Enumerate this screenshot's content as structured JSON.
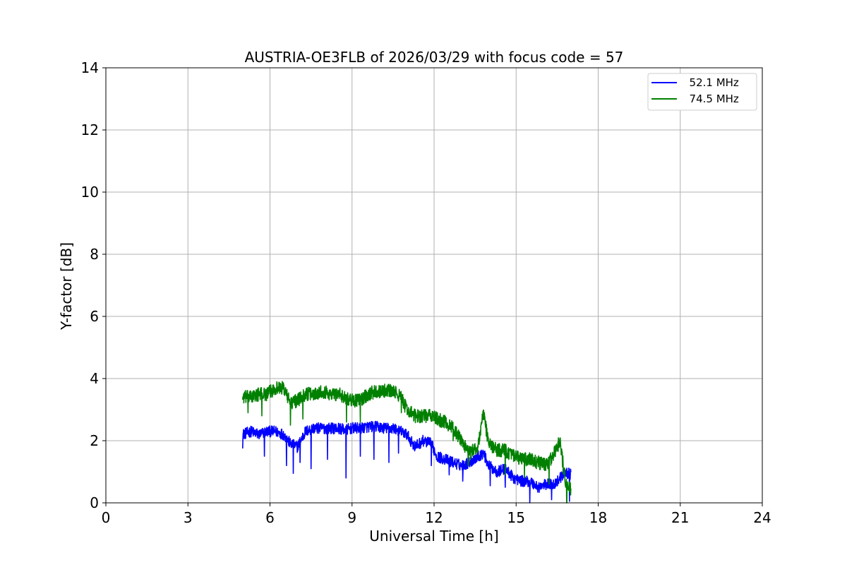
{
  "chart_data": {
    "type": "line",
    "title": "AUSTRIA-OE3FLB of 2026/03/29 with focus code = 57",
    "xlabel": "Universal Time [h]",
    "ylabel": "Y-factor [dB]",
    "xlim": [
      0,
      24
    ],
    "ylim": [
      0,
      14
    ],
    "xticks": [
      0,
      3,
      6,
      9,
      12,
      15,
      18,
      21,
      24
    ],
    "yticks": [
      0,
      2,
      4,
      6,
      8,
      10,
      12,
      14
    ],
    "grid": true,
    "legend_position": "top-right",
    "series": [
      {
        "name": "52.1 MHz",
        "legend_label": "  52.1 MHz",
        "color": "#0000ff",
        "x": [
          5.0,
          5.3,
          5.6,
          5.9,
          6.2,
          6.5,
          6.75,
          7.0,
          7.3,
          7.6,
          7.9,
          8.2,
          8.5,
          8.75,
          9.0,
          9.3,
          9.6,
          9.9,
          10.2,
          10.5,
          10.8,
          11.0,
          11.3,
          11.6,
          11.9,
          12.1,
          12.4,
          12.7,
          13.0,
          13.3,
          13.6,
          13.8,
          14.0,
          14.3,
          14.6,
          14.9,
          15.2,
          15.5,
          15.8,
          16.1,
          16.4,
          16.6,
          16.8,
          17.0
        ],
        "y": [
          2.2,
          2.3,
          2.2,
          2.3,
          2.3,
          2.2,
          1.9,
          1.8,
          2.3,
          2.4,
          2.4,
          2.4,
          2.4,
          2.35,
          2.4,
          2.4,
          2.45,
          2.45,
          2.4,
          2.4,
          2.3,
          2.2,
          1.8,
          2.0,
          1.9,
          1.5,
          1.4,
          1.3,
          1.2,
          1.3,
          1.5,
          1.6,
          1.2,
          1.0,
          1.1,
          0.8,
          0.7,
          0.7,
          0.5,
          0.6,
          0.6,
          0.8,
          1.0,
          0.9
        ],
        "noise": 0.18,
        "dips": [
          [
            5.0,
            1.75
          ],
          [
            5.8,
            1.5
          ],
          [
            6.6,
            1.2
          ],
          [
            6.85,
            0.95
          ],
          [
            7.1,
            1.3
          ],
          [
            7.5,
            1.1
          ],
          [
            8.1,
            1.4
          ],
          [
            8.78,
            0.8
          ],
          [
            9.3,
            1.5
          ],
          [
            9.8,
            1.4
          ],
          [
            10.35,
            1.3
          ],
          [
            10.7,
            1.6
          ],
          [
            11.9,
            1.2
          ],
          [
            12.55,
            0.9
          ],
          [
            13.05,
            0.7
          ],
          [
            14.05,
            0.55
          ],
          [
            14.6,
            0.5
          ],
          [
            15.5,
            0.0
          ],
          [
            16.3,
            0.1
          ],
          [
            16.95,
            0.05
          ]
        ]
      },
      {
        "name": "74.5 MHz",
        "legend_label": "  74.5 MHz",
        "color": "#008000",
        "x": [
          5.0,
          5.3,
          5.6,
          5.9,
          6.2,
          6.5,
          6.75,
          7.0,
          7.3,
          7.6,
          7.9,
          8.2,
          8.5,
          8.75,
          9.0,
          9.3,
          9.6,
          9.9,
          10.2,
          10.5,
          10.8,
          11.0,
          11.3,
          11.6,
          11.9,
          12.1,
          12.4,
          12.7,
          13.0,
          13.3,
          13.6,
          13.8,
          14.0,
          14.3,
          14.6,
          14.9,
          15.2,
          15.5,
          15.8,
          16.1,
          16.4,
          16.6,
          16.8,
          17.0
        ],
        "y": [
          3.4,
          3.4,
          3.5,
          3.5,
          3.7,
          3.7,
          3.2,
          3.3,
          3.5,
          3.5,
          3.6,
          3.5,
          3.5,
          3.4,
          3.3,
          3.3,
          3.5,
          3.6,
          3.6,
          3.6,
          3.4,
          3.0,
          2.8,
          2.8,
          2.8,
          2.7,
          2.6,
          2.4,
          2.0,
          1.6,
          1.8,
          2.9,
          1.9,
          1.7,
          1.7,
          1.5,
          1.4,
          1.4,
          1.3,
          1.2,
          1.6,
          2.0,
          0.7,
          0.4
        ],
        "noise": 0.22,
        "dips": [
          [
            5.2,
            2.9
          ],
          [
            5.7,
            2.8
          ],
          [
            6.75,
            2.5
          ],
          [
            7.2,
            2.7
          ],
          [
            8.8,
            2.6
          ],
          [
            9.3,
            2.6
          ],
          [
            10.8,
            2.9
          ],
          [
            12.7,
            2.0
          ],
          [
            13.25,
            1.2
          ],
          [
            14.6,
            0.9
          ],
          [
            15.3,
            0.8
          ],
          [
            16.2,
            0.6
          ],
          [
            16.85,
            0.0
          ]
        ]
      }
    ]
  }
}
